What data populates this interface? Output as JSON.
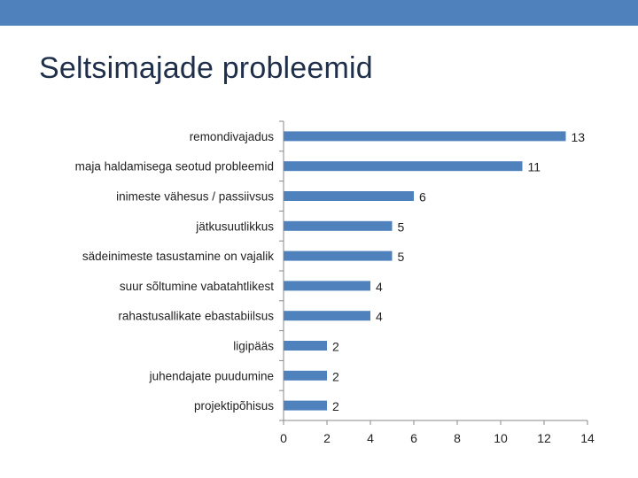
{
  "colors": {
    "accent": "#4f81bd",
    "title": "#1f2f4a",
    "axis": "#888888",
    "text": "#222222"
  },
  "slide": {
    "title": "Seltsimajade probleemid"
  },
  "chart_data": {
    "type": "bar",
    "orientation": "horizontal",
    "categories": [
      "remondivajadus",
      "maja haldamisega seotud probleemid",
      "inimeste vähesus / passiivsus",
      "jätkusuutlikkus",
      "sädeinimeste tasustamine on vajalik",
      "suur sõltumine vabatahtlikest",
      "rahastusallikate ebastabiilsus",
      "ligipääs",
      "juhendajate puudumine",
      "projektipõhisus"
    ],
    "values": [
      13,
      11,
      6,
      5,
      5,
      4,
      4,
      2,
      2,
      2
    ],
    "data_labels": [
      "13",
      "11",
      "6",
      "5",
      "5",
      "4",
      "4",
      "2",
      "2",
      "2"
    ],
    "xlim": [
      0,
      14
    ],
    "xticks": [
      0,
      2,
      4,
      6,
      8,
      10,
      12,
      14
    ],
    "xtick_labels": [
      "0",
      "2",
      "4",
      "6",
      "8",
      "10",
      "12",
      "14"
    ],
    "title": "",
    "xlabel": "",
    "ylabel": "",
    "grid": false,
    "legend": "none",
    "bar_color": "#4f81bd"
  }
}
